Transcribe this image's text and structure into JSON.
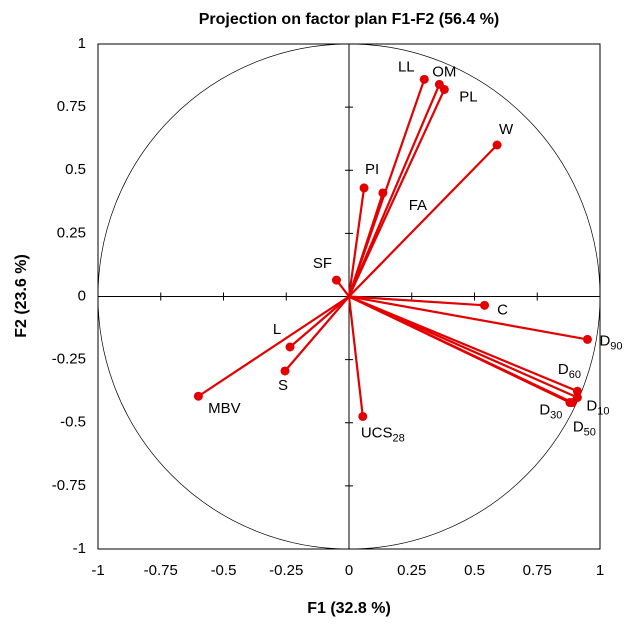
{
  "chart_data": {
    "type": "scatter",
    "title": "Projection on factor plan F1-F2 (56.4 %)",
    "x_label": "F1 (32.8 %)",
    "y_label": "F2 (23.6 %)",
    "color": "#e30000",
    "xlim": [
      -1,
      1
    ],
    "ylim": [
      -1,
      1
    ],
    "xticks": [
      -1,
      -0.75,
      -0.5,
      -0.25,
      0,
      0.25,
      0.5,
      0.75,
      1
    ],
    "yticks": [
      -1,
      -0.75,
      -0.5,
      -0.25,
      0,
      0.25,
      0.5,
      0.75,
      1
    ],
    "grid": false,
    "points": [
      {
        "name": "LL",
        "x": 0.3,
        "y": 0.86
      },
      {
        "name": "OM",
        "x": 0.36,
        "y": 0.84
      },
      {
        "name": "PL",
        "x": 0.38,
        "y": 0.82
      },
      {
        "name": "W",
        "x": 0.59,
        "y": 0.6
      },
      {
        "name": "PI",
        "x": 0.06,
        "y": 0.43
      },
      {
        "name": "FA",
        "x": 0.135,
        "y": 0.41
      },
      {
        "name": "SF",
        "x": -0.05,
        "y": 0.065
      },
      {
        "name": "C",
        "x": 0.54,
        "y": -0.035
      },
      {
        "name": "D",
        "sub": "90",
        "x": 0.95,
        "y": -0.17
      },
      {
        "name": "D",
        "sub": "60",
        "x": 0.91,
        "y": -0.375
      },
      {
        "name": "D",
        "sub": "10",
        "x": 0.91,
        "y": -0.4
      },
      {
        "name": "D",
        "sub": "50",
        "x": 0.89,
        "y": -0.42
      },
      {
        "name": "D",
        "sub": "30",
        "x": 0.88,
        "y": -0.42
      },
      {
        "name": "L",
        "x": -0.235,
        "y": -0.2
      },
      {
        "name": "S",
        "x": -0.255,
        "y": -0.295
      },
      {
        "name": "MBV",
        "x": -0.6,
        "y": -0.395
      },
      {
        "name": "UCS",
        "sub": "28",
        "x": 0.055,
        "y": -0.475
      }
    ]
  }
}
